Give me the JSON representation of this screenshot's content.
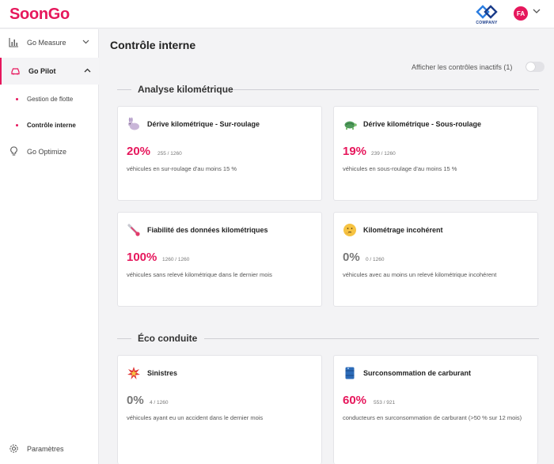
{
  "app": {
    "brand": "SoonGo",
    "company_label": "COMPANY",
    "avatar_initials": "FA",
    "accent_color": "#e6175c"
  },
  "sidebar": {
    "items": [
      {
        "label": "Go Measure",
        "icon": "bar-chart-icon"
      },
      {
        "label": "Go Pilot",
        "icon": "car-icon"
      },
      {
        "label": "Go Optimize",
        "icon": "lightbulb-icon"
      }
    ],
    "sub_items": [
      {
        "label": "Gestion de flotte"
      },
      {
        "label": "Contrôle interne"
      }
    ],
    "footer": {
      "label": "Paramètres",
      "icon": "gear-icon"
    }
  },
  "main": {
    "title": "Contrôle interne",
    "toggle_label": "Afficher les contrôles inactifs (1)",
    "toggle_on": false,
    "sections": [
      {
        "title": "Analyse kilométrique",
        "cards": [
          {
            "title": "Dérive kilométrique - Sur-roulage",
            "icon": "rabbit-icon",
            "percent": "20%",
            "count": "255 / 1260",
            "description": "véhicules en sur-roulage d'au moins 15 %"
          },
          {
            "title": "Dérive kilométrique - Sous-roulage",
            "icon": "turtle-icon",
            "percent": "19%",
            "count": "239 / 1260",
            "description": "véhicules en sous-roulage d'au moins 15 %"
          },
          {
            "title": "Fiabilité des données kilométriques",
            "icon": "thermometer-icon",
            "percent": "100%",
            "count": "1260 / 1260",
            "description": "véhicules sans relevé kilométrique dans le dernier mois"
          },
          {
            "title": "Kilométrage incohérent",
            "icon": "thinking-face-icon",
            "percent": "0%",
            "count": "0 / 1260",
            "description": "véhicules avec au moins un relevé kilométrique incohérent"
          }
        ]
      },
      {
        "title": "Éco conduite",
        "cards": [
          {
            "title": "Sinistres",
            "icon": "collision-icon",
            "percent": "0%",
            "count": "4 / 1260",
            "description": "véhicules ayant eu un accident dans le dernier mois"
          },
          {
            "title": "Surconsommation de carburant",
            "icon": "fuel-barrel-icon",
            "percent": "60%",
            "count": "553 / 921",
            "description": "conducteurs en surconsommation de carburant (>50 % sur 12 mois)"
          }
        ]
      }
    ]
  }
}
